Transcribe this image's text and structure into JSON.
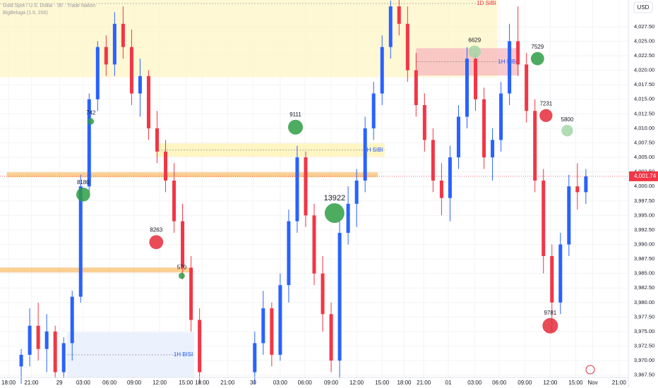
{
  "chart_data": {
    "type": "candlestick",
    "title": "Gold Spot / U.S. Dollar · 30 · Trade Nation",
    "subtitle": "BigBeluga (1.5, 200)",
    "currency": "USD",
    "up_color": "#2962ff",
    "down_color": "#f23645",
    "grid": true,
    "xlim": [
      -1,
      73
    ],
    "ylim": [
      3967.1,
      4032.1
    ],
    "xticks": [
      {
        "value": 0,
        "label": "18:00"
      },
      {
        "value": 2.7,
        "label": "21:00"
      },
      {
        "value": 6,
        "label": "29"
      },
      {
        "value": 8.8,
        "label": "03:00"
      },
      {
        "value": 11.9,
        "label": "06:00"
      },
      {
        "value": 14.8,
        "label": "09:00"
      },
      {
        "value": 17.8,
        "label": "12:00"
      },
      {
        "value": 20.9,
        "label": "15:00"
      },
      {
        "value": 22.8,
        "label": "18:00"
      },
      {
        "value": 25.8,
        "label": "21:00"
      },
      {
        "value": 28.8,
        "label": "30"
      },
      {
        "value": 32,
        "label": "03:00"
      },
      {
        "value": 34.9,
        "label": "06:00"
      },
      {
        "value": 38,
        "label": "09:00"
      },
      {
        "value": 41,
        "label": "12:00"
      },
      {
        "value": 44,
        "label": "15:00"
      },
      {
        "value": 46.6,
        "label": "18:00"
      },
      {
        "value": 48.9,
        "label": "21:00"
      },
      {
        "value": 51.8,
        "label": "01"
      },
      {
        "value": 54.9,
        "label": "03:00"
      },
      {
        "value": 57.8,
        "label": "06:00"
      },
      {
        "value": 60.8,
        "label": "09:00"
      },
      {
        "value": 63.8,
        "label": "12:00"
      },
      {
        "value": 66.8,
        "label": "15:00"
      },
      {
        "value": 68.8,
        "label": "Nov"
      },
      {
        "value": 71.9,
        "label": "21:00"
      }
    ],
    "yticks": [
      {
        "value": 3967.5,
        "label": "3,967.50"
      },
      {
        "value": 3970,
        "label": "3,970.00"
      },
      {
        "value": 3972.5,
        "label": "3,972.50"
      },
      {
        "value": 3975,
        "label": "3,975.00"
      },
      {
        "value": 3977.5,
        "label": "3,977.50"
      },
      {
        "value": 3980,
        "label": "3,980.00"
      },
      {
        "value": 3982.5,
        "label": "3,982.50"
      },
      {
        "value": 3985,
        "label": "3,985.00"
      },
      {
        "value": 3987.5,
        "label": "3,987.50"
      },
      {
        "value": 3990,
        "label": "3,990.00"
      },
      {
        "value": 3992.5,
        "label": "3,992.50"
      },
      {
        "value": 3995,
        "label": "3,995.00"
      },
      {
        "value": 3997.5,
        "label": "3,997.50"
      },
      {
        "value": 4000,
        "label": "4,000.00"
      },
      {
        "value": 4002.5,
        "label": "4,002.50"
      },
      {
        "value": 4005,
        "label": "4,005.00"
      },
      {
        "value": 4007.5,
        "label": "4,007.50"
      },
      {
        "value": 4010,
        "label": "4,010.00"
      },
      {
        "value": 4012.5,
        "label": "4,012.50"
      },
      {
        "value": 4015,
        "label": "4,015.00"
      },
      {
        "value": 4017.5,
        "label": "4,017.50"
      },
      {
        "value": 4020,
        "label": "4,020.00"
      },
      {
        "value": 4022.5,
        "label": "4,022.50"
      },
      {
        "value": 4025,
        "label": "4,025.00"
      },
      {
        "value": 4027.5,
        "label": "4,027.50"
      }
    ],
    "last_price": {
      "value": 4001.74,
      "label": "4,001.74"
    },
    "candles": {
      "x": [
        1.5,
        2.5,
        3.5,
        4.5,
        5.5,
        6.5,
        7.5,
        8.5,
        9.5,
        10.5,
        11.5,
        12.5,
        13.5,
        14.5,
        15.5,
        16.5,
        17.5,
        18.5,
        19.5,
        20.5,
        21.5,
        22.5,
        29,
        30,
        31,
        32,
        33,
        34,
        35,
        36,
        37,
        38,
        39,
        40,
        41,
        42,
        43,
        44,
        45,
        46,
        47,
        48,
        49,
        50,
        51,
        52,
        53,
        54,
        55,
        56,
        57,
        58,
        59,
        60,
        61,
        62,
        63,
        64,
        65,
        66,
        67,
        68
      ],
      "open": [
        3969,
        3971,
        3976,
        3972,
        3975,
        3968,
        3973,
        3981,
        4000,
        4015,
        4024,
        4021,
        4028,
        4024,
        4016,
        4019,
        4010,
        4006,
        4001,
        3994,
        3986,
        3977,
        3968,
        3973,
        3979,
        3971,
        3983,
        3994,
        4005,
        3995,
        3985,
        3978,
        3970,
        3992,
        3997,
        4001,
        4010,
        4016,
        4024,
        4031,
        4028,
        4020,
        4014,
        4008,
        4001,
        3998,
        4005,
        4012,
        4022,
        4015,
        4005,
        4008,
        4016,
        4025,
        4021,
        4013,
        4001,
        3988,
        3980,
        3990,
        4000,
        3999
      ],
      "high": [
        3972,
        3979,
        3980,
        3978,
        3976,
        3974,
        3982,
        4002,
        4016,
        4025,
        4026,
        4030,
        4031,
        4027,
        4022,
        4020,
        4013,
        4008,
        4004,
        3997,
        3988,
        3979,
        3975,
        3982,
        3980,
        3985,
        3996,
        4007,
        4006,
        3997,
        3988,
        3980,
        3994,
        4000,
        4003,
        4012,
        4018,
        4026,
        4032,
        4033,
        4031,
        4023,
        4016,
        4010,
        4004,
        4007,
        4014,
        4024,
        4023,
        4017,
        4010,
        4018,
        4028,
        4031,
        4023,
        4015,
        4003,
        3990,
        3992,
        4002,
        4004,
        4003
      ],
      "low": [
        3966,
        3969,
        3970,
        3968,
        3967,
        3967,
        3970,
        3980,
        3999,
        4013,
        4019,
        4019,
        4022,
        4014,
        4012,
        4008,
        4004,
        3999,
        3992,
        3984,
        3975,
        3966,
        3966,
        3971,
        3969,
        3970,
        3980,
        3992,
        3993,
        3983,
        3975,
        3968,
        3967,
        3990,
        3993,
        3999,
        4008,
        4014,
        4022,
        4026,
        4018,
        4012,
        4006,
        3999,
        3995,
        3994,
        4003,
        4010,
        4013,
        4003,
        4001,
        4006,
        4014,
        4019,
        4011,
        3999,
        3985,
        3975,
        3978,
        3988,
        3996,
        3997
      ],
      "close": [
        3971,
        3976,
        3972,
        3975,
        3968,
        3973,
        3981,
        4000,
        4015,
        4024,
        4021,
        4028,
        4024,
        4016,
        4019,
        4010,
        4006,
        4001,
        3994,
        3986,
        3977,
        3968,
        3973,
        3979,
        3971,
        3983,
        3994,
        4005,
        3995,
        3985,
        3978,
        3970,
        3992,
        3997,
        4001,
        4010,
        4016,
        4024,
        4031,
        4028,
        4020,
        4014,
        4008,
        4001,
        3998,
        4005,
        4012,
        4022,
        4015,
        4005,
        4008,
        4016,
        4025,
        4021,
        4013,
        4001,
        3988,
        3980,
        3990,
        4000,
        3999,
        4001.74
      ]
    },
    "zones": [
      {
        "label": "1D SIBI",
        "x": [
          -1,
          57.6
        ],
        "y": [
          4018.8,
          4032.1
        ],
        "fill": "#fff6c6",
        "text_color": "#f23645"
      },
      {
        "label": "1H SIBI",
        "x": [
          48,
          60.1
        ],
        "y": [
          4019.1,
          4023.8
        ],
        "fill": "#f7b8bf",
        "text_color": "#2962ff"
      },
      {
        "label": "1H SIBI",
        "x": [
          17.3,
          44.3
        ],
        "y": [
          4005.1,
          4007.4
        ],
        "fill": "#fff3b0",
        "text_color": "#2962ff"
      },
      {
        "label": "1H BISI",
        "x": [
          6.9,
          21.9
        ],
        "y": [
          3967.1,
          3974.9
        ],
        "fill": "#e6eefc",
        "text_color": "#2962ff"
      }
    ],
    "levels": [
      {
        "value": 4002.0,
        "x": [
          -0.2,
          43.5
        ],
        "color": "#f7a93b"
      },
      {
        "value": 3985.6,
        "x": [
          -1,
          21.3
        ],
        "color": "#f7a93b"
      }
    ],
    "bubbles": [
      {
        "x": 33.8,
        "y": 4010.2,
        "value": 9111,
        "color": "#2e9e44"
      },
      {
        "x": 38.4,
        "y": 3995.4,
        "value": 13922,
        "color": "#2e9e44"
      },
      {
        "x": 62.3,
        "y": 4022.0,
        "value": 7529,
        "color": "#2e9e44"
      },
      {
        "x": 9.7,
        "y": 4011.2,
        "value": 742,
        "color": "#2e9e44"
      },
      {
        "x": 8.8,
        "y": 3998.6,
        "value": 8180,
        "color": "#2e9e44"
      },
      {
        "x": 17.4,
        "y": 3990.4,
        "value": 8263,
        "color": "#e52b3b"
      },
      {
        "x": 20.4,
        "y": 3984.6,
        "value": 570,
        "color": "#2e9e44"
      },
      {
        "x": 63.8,
        "y": 3976.0,
        "value": 9781,
        "color": "#e52b3b"
      },
      {
        "x": 63.3,
        "y": 4012.2,
        "value": 7231,
        "color": "#e52b3b"
      },
      {
        "x": 54.9,
        "y": 4023.2,
        "value": 6629,
        "color": "#a5d6a7"
      },
      {
        "x": 65.8,
        "y": 4009.6,
        "value": 5800,
        "color": "#a5d6a7"
      }
    ]
  }
}
